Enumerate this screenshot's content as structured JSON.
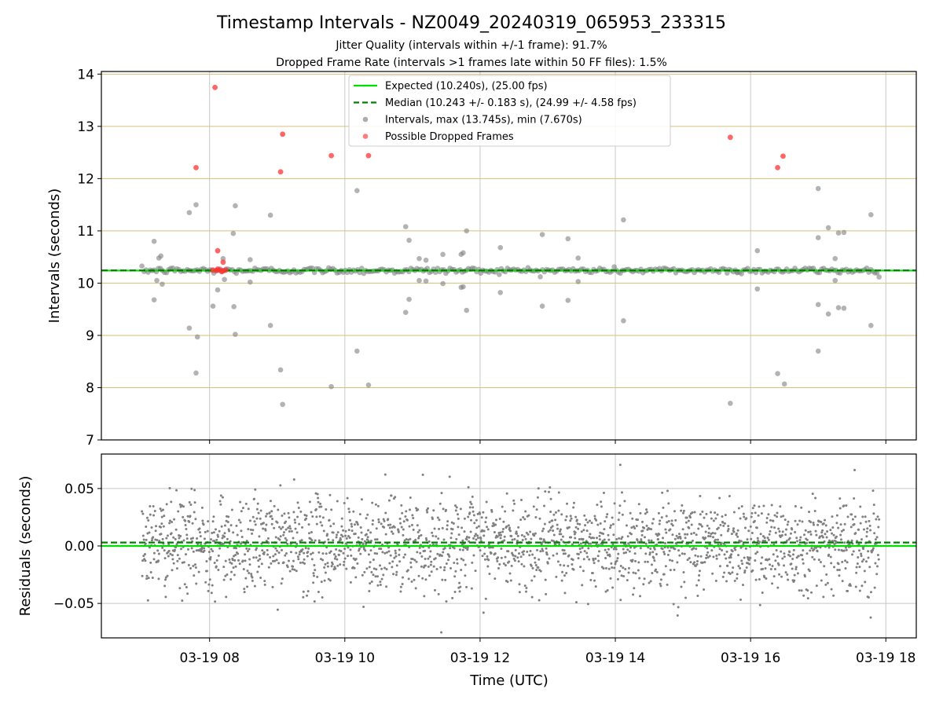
{
  "chart_data": {
    "type": "scatter",
    "title": "Timestamp Intervals - NZ0049_20240319_065953_233315",
    "subtitles": [
      "Jitter Quality (intervals within +/-1 frame): 91.7%",
      "Dropped Frame Rate (intervals >1 frames late within 50 FF files): 1.5%"
    ],
    "xlabel": "Time (UTC)",
    "x_ticks": [
      "03-19 08",
      "03-19 10",
      "03-19 12",
      "03-19 14",
      "03-19 16",
      "03-19 18"
    ],
    "x_tick_hours": [
      8,
      10,
      12,
      14,
      16,
      18
    ],
    "xlim_hours": [
      6.4,
      18.45
    ],
    "data_span_hours": [
      7.0,
      17.9
    ],
    "grid": true,
    "colors": {
      "expected": "#00e000",
      "median": "#008000",
      "intervals": "#808080",
      "dropped": "#ff3333",
      "grid_top": "#d4c07a",
      "grid_x": "#c8c8c8"
    },
    "panels": [
      {
        "id": "intervals",
        "ylabel": "Intervals (seconds)",
        "ylim": [
          7,
          14.05
        ],
        "y_ticks": [
          7,
          8,
          9,
          10,
          11,
          12,
          13,
          14
        ],
        "y_tick_labels": [
          "7",
          "8",
          "9",
          "10",
          "11",
          "12",
          "13",
          "14"
        ],
        "legend": {
          "placement": "top-center",
          "entries": [
            {
              "style": "solid-line",
              "color": "#00e000",
              "label": "Expected (10.240s), (25.00 fps)"
            },
            {
              "style": "dashed-line",
              "color": "#008000",
              "label": "Median (10.243 +/- 0.183 s), (24.99 +/- 4.58 fps)"
            },
            {
              "style": "marker",
              "color": "#808080",
              "label": "Intervals, max (13.745s), min (7.670s)"
            },
            {
              "style": "marker",
              "color": "#ff3333",
              "label": "Possible Dropped Frames"
            }
          ]
        },
        "expected_y": 10.24,
        "median_y": 10.243,
        "band_y": 10.243,
        "band_jitter": 0.03,
        "outliers": [
          [
            7.18,
            10.8
          ],
          [
            7.25,
            10.48
          ],
          [
            7.28,
            10.52
          ],
          [
            7.22,
            10.05
          ],
          [
            7.3,
            9.98
          ],
          [
            7.18,
            9.68
          ],
          [
            7.7,
            11.35
          ],
          [
            7.8,
            11.5
          ],
          [
            7.7,
            9.14
          ],
          [
            7.82,
            8.97
          ],
          [
            7.8,
            8.28
          ],
          [
            8.12,
            9.87
          ],
          [
            8.05,
            9.56
          ],
          [
            8.2,
            10.47
          ],
          [
            8.22,
            10.07
          ],
          [
            8.35,
            10.95
          ],
          [
            8.38,
            11.48
          ],
          [
            8.36,
            9.55
          ],
          [
            8.38,
            9.02
          ],
          [
            8.6,
            10.45
          ],
          [
            8.6,
            10.02
          ],
          [
            8.9,
            11.3
          ],
          [
            8.9,
            9.19
          ],
          [
            9.05,
            8.34
          ],
          [
            9.08,
            7.68
          ],
          [
            9.8,
            8.02
          ],
          [
            10.18,
            11.77
          ],
          [
            10.18,
            8.7
          ],
          [
            10.35,
            8.05
          ],
          [
            10.9,
            11.08
          ],
          [
            10.95,
            10.82
          ],
          [
            10.95,
            9.69
          ],
          [
            10.9,
            9.44
          ],
          [
            11.1,
            10.47
          ],
          [
            11.2,
            10.44
          ],
          [
            11.1,
            10.05
          ],
          [
            11.2,
            10.04
          ],
          [
            11.45,
            10.55
          ],
          [
            11.45,
            9.99
          ],
          [
            11.72,
            10.55
          ],
          [
            11.75,
            10.58
          ],
          [
            11.8,
            11.0
          ],
          [
            11.72,
            9.92
          ],
          [
            11.75,
            9.93
          ],
          [
            11.8,
            9.48
          ],
          [
            12.3,
            10.68
          ],
          [
            12.3,
            9.82
          ],
          [
            12.92,
            10.93
          ],
          [
            12.92,
            9.56
          ],
          [
            13.3,
            10.85
          ],
          [
            13.3,
            9.67
          ],
          [
            13.45,
            10.48
          ],
          [
            13.45,
            10.03
          ],
          [
            14.12,
            11.21
          ],
          [
            14.12,
            9.28
          ],
          [
            15.7,
            7.7
          ],
          [
            15.8,
            10.2
          ],
          [
            16.1,
            10.62
          ],
          [
            16.1,
            9.89
          ],
          [
            16.4,
            8.27
          ],
          [
            16.5,
            8.07
          ],
          [
            17.0,
            11.81
          ],
          [
            17.0,
            10.87
          ],
          [
            17.0,
            9.59
          ],
          [
            17.0,
            8.7
          ],
          [
            17.15,
            11.06
          ],
          [
            17.15,
            9.41
          ],
          [
            17.25,
            10.47
          ],
          [
            17.25,
            10.05
          ],
          [
            17.3,
            10.96
          ],
          [
            17.3,
            9.53
          ],
          [
            17.38,
            10.97
          ],
          [
            17.38,
            9.52
          ],
          [
            17.78,
            11.31
          ],
          [
            17.78,
            9.19
          ]
        ],
        "dropped_frames": [
          [
            8.08,
            13.745
          ],
          [
            7.8,
            12.21
          ],
          [
            8.12,
            10.62
          ],
          [
            8.2,
            10.4
          ],
          [
            9.05,
            12.13
          ],
          [
            9.08,
            12.85
          ],
          [
            9.8,
            12.44
          ],
          [
            10.35,
            12.44
          ],
          [
            15.7,
            12.79
          ],
          [
            16.4,
            12.21
          ],
          [
            16.48,
            12.43
          ],
          [
            8.05,
            10.25
          ],
          [
            8.1,
            10.24
          ],
          [
            8.15,
            10.25
          ],
          [
            8.2,
            10.24
          ],
          [
            8.24,
            10.25
          ],
          [
            8.12,
            10.27
          ],
          [
            8.18,
            10.22
          ]
        ]
      },
      {
        "id": "residuals",
        "ylabel": "Residuals (seconds)",
        "ylim": [
          -0.08,
          0.08
        ],
        "y_ticks": [
          -0.05,
          0.0,
          0.05
        ],
        "y_tick_labels": [
          "−0.05",
          "0.00",
          "0.05"
        ],
        "expected_y": 0.0,
        "median_y": 0.003,
        "residual_spread": 0.02,
        "residual_center": 0.002
      }
    ]
  }
}
